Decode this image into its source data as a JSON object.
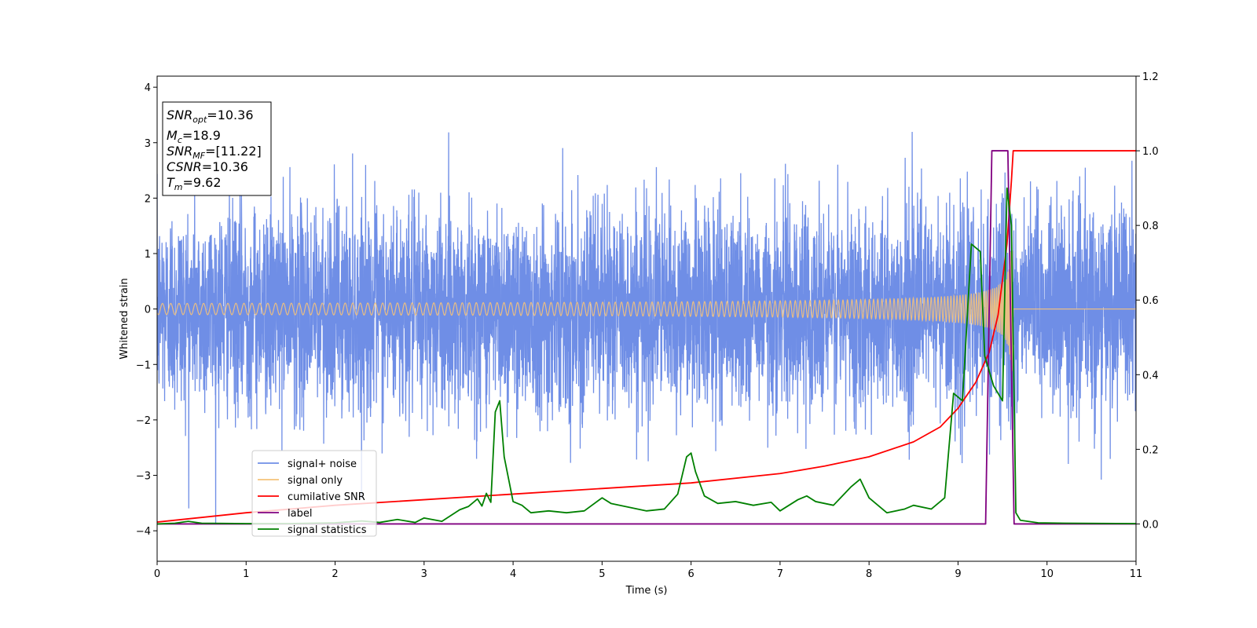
{
  "chart_data": {
    "type": "line",
    "title": "",
    "xlabel": "Time (s)",
    "ylabel": "Whitened strain",
    "xlim": [
      0,
      11
    ],
    "ylim": [
      -4.55,
      4.2
    ],
    "y2lim": [
      -0.1,
      1.2
    ],
    "x_ticks": [
      0,
      1,
      2,
      3,
      4,
      5,
      6,
      7,
      8,
      9,
      10,
      11
    ],
    "y_ticks": [
      -4,
      -3,
      -2,
      -1,
      0,
      1,
      2,
      3,
      4
    ],
    "y_tick_labels": [
      "−4",
      "−3",
      "−2",
      "−1",
      "0",
      "1",
      "2",
      "3",
      "4"
    ],
    "y2_ticks": [
      0.0,
      0.2,
      0.4,
      0.6,
      0.8,
      1.0,
      1.2
    ],
    "y2_tick_labels": [
      "0.0",
      "0.2",
      "0.4",
      "0.6",
      "0.8",
      "1.0",
      "1.2"
    ],
    "grid": false,
    "legend_position": "lower-left",
    "colors": {
      "noise": "#6f8ee6",
      "signal": "#f5c27a",
      "csnr": "#ff0000",
      "label": "#800080",
      "stats": "#008000"
    },
    "annotation": {
      "snr_opt": {
        "base": "SNR",
        "sub": "opt",
        "value": "=10.36"
      },
      "mc": {
        "base": "M",
        "sub": "c",
        "value": "=18.9"
      },
      "snr_mf": {
        "base": "SNR",
        "sub": "MF",
        "value": "=[11.22]"
      },
      "csnr": {
        "base": "CSNR",
        "value": "=10.36"
      },
      "tm": {
        "base": "T",
        "sub": "m",
        "value": "=9.62"
      }
    },
    "series": [
      {
        "name": "signal+ noise",
        "axis": "left",
        "style": "noise",
        "description_values": {
          "approx_std": 0.9,
          "t_start": 0,
          "t_end": 11
        }
      },
      {
        "name": "signal only",
        "axis": "left",
        "style": "chirp",
        "merger_time": 9.62,
        "peak_amplitude": 1.2
      },
      {
        "name": "cumilative SNR",
        "axis": "right",
        "x": [
          0,
          1,
          2,
          3,
          4,
          5,
          6,
          7,
          7.5,
          8,
          8.5,
          8.8,
          9.0,
          9.2,
          9.35,
          9.45,
          9.55,
          9.6,
          9.62,
          9.7,
          11
        ],
        "y": [
          0.005,
          0.03,
          0.05,
          0.065,
          0.08,
          0.095,
          0.11,
          0.135,
          0.155,
          0.18,
          0.22,
          0.26,
          0.31,
          0.38,
          0.46,
          0.56,
          0.75,
          0.92,
          1.0,
          1.0,
          1.0
        ]
      },
      {
        "name": "label",
        "axis": "right",
        "x": [
          0,
          9.31,
          9.38,
          9.56,
          9.63,
          11
        ],
        "y": [
          0,
          0,
          1,
          1,
          0,
          0
        ]
      },
      {
        "name": "signal statistics",
        "axis": "right",
        "x": [
          0,
          0.2,
          0.35,
          0.5,
          1.0,
          1.5,
          2.0,
          2.3,
          2.5,
          2.7,
          2.9,
          3.0,
          3.2,
          3.4,
          3.5,
          3.6,
          3.65,
          3.7,
          3.75,
          3.8,
          3.85,
          3.9,
          3.95,
          4.0,
          4.1,
          4.2,
          4.4,
          4.6,
          4.8,
          5.0,
          5.1,
          5.3,
          5.5,
          5.7,
          5.85,
          5.95,
          6.0,
          6.05,
          6.15,
          6.3,
          6.5,
          6.7,
          6.9,
          7.0,
          7.2,
          7.3,
          7.4,
          7.6,
          7.8,
          7.9,
          8.0,
          8.2,
          8.4,
          8.5,
          8.7,
          8.85,
          8.95,
          9.05,
          9.15,
          9.25,
          9.3,
          9.4,
          9.5,
          9.55,
          9.6,
          9.65,
          9.7,
          9.9,
          10.2,
          11
        ],
        "y": [
          0,
          0.002,
          0.007,
          0.002,
          0.001,
          0.001,
          0.003,
          0.008,
          0.004,
          0.012,
          0.004,
          0.016,
          0.007,
          0.038,
          0.047,
          0.067,
          0.048,
          0.082,
          0.058,
          0.3,
          0.33,
          0.18,
          0.12,
          0.06,
          0.05,
          0.03,
          0.035,
          0.03,
          0.035,
          0.07,
          0.055,
          0.045,
          0.035,
          0.04,
          0.08,
          0.18,
          0.19,
          0.14,
          0.075,
          0.055,
          0.06,
          0.05,
          0.058,
          0.035,
          0.065,
          0.075,
          0.06,
          0.05,
          0.1,
          0.12,
          0.07,
          0.03,
          0.04,
          0.05,
          0.04,
          0.07,
          0.35,
          0.33,
          0.75,
          0.73,
          0.45,
          0.37,
          0.33,
          0.9,
          0.8,
          0.03,
          0.01,
          0.003,
          0.002,
          0.001
        ]
      }
    ]
  }
}
